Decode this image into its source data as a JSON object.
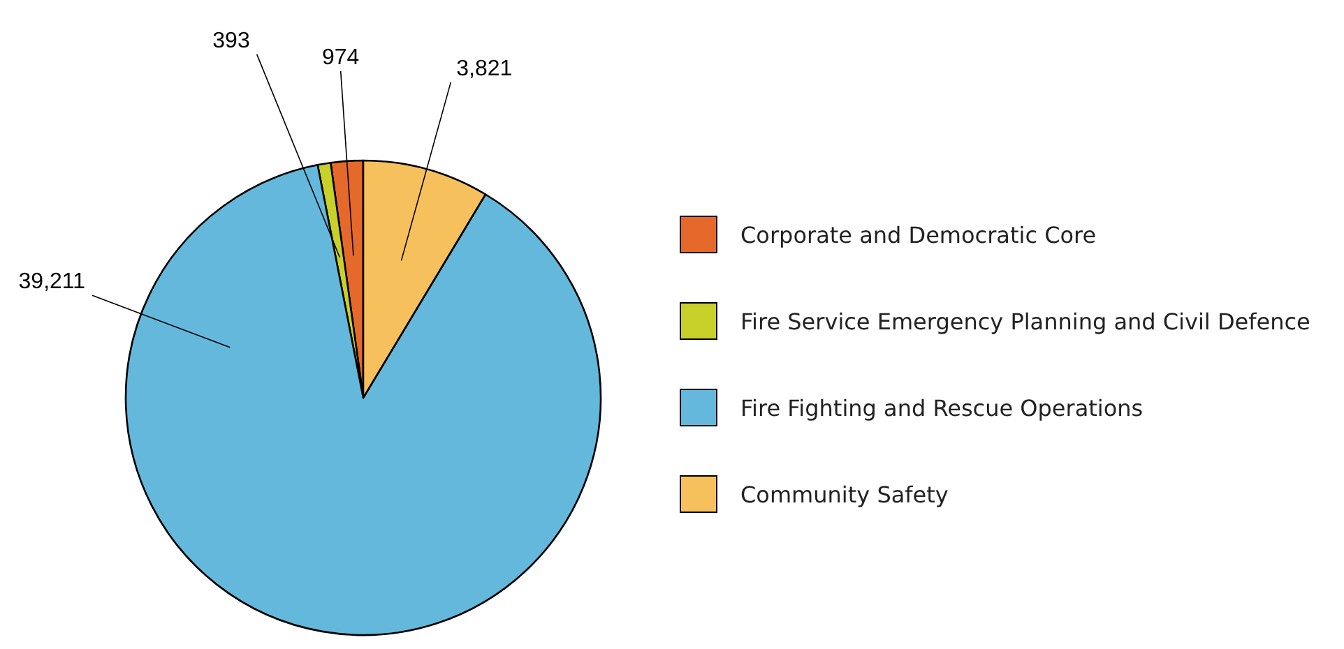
{
  "chart_data": {
    "type": "pie",
    "categories": [
      "Corporate and Democratic Core",
      "Fire Service Emergency Planning and Civil Defence",
      "Fire Fighting and Rescue Operations",
      "Community Safety"
    ],
    "values": [
      974,
      393,
      39211,
      3821
    ],
    "colors": [
      "#e5692a",
      "#c8d12a",
      "#63b8dc",
      "#f6c15c"
    ],
    "value_labels": [
      "974",
      "393",
      "39,211",
      "3,821"
    ],
    "legend": "right"
  }
}
